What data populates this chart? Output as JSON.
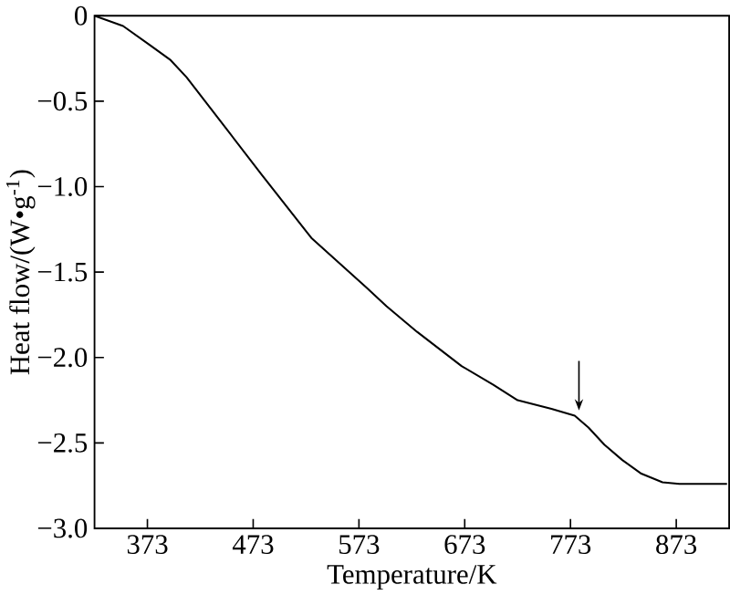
{
  "chart_data": {
    "type": "line",
    "xlabel": "Temperature/K",
    "ylabel": "Heat flow/(W•g$^{-1}$)",
    "xlim": [
      323,
      923
    ],
    "ylim": [
      -3.0,
      0
    ],
    "xticks": [
      373,
      473,
      573,
      673,
      773,
      873
    ],
    "yticks": [
      {
        "value": -3.0,
        "label": "−3.0"
      },
      {
        "value": -2.5,
        "label": "−2.5"
      },
      {
        "value": -2.0,
        "label": "−2.0"
      },
      {
        "value": -1.5,
        "label": "−1.5"
      },
      {
        "value": -1.0,
        "label": "−1.0"
      },
      {
        "value": -0.5,
        "label": "−0.5"
      },
      0
    ],
    "grid": false,
    "marker": "none",
    "line_style": "solid",
    "series": [
      {
        "color": "#000000",
        "x": [
          323,
          350,
          375,
          395,
          410,
          445,
          481,
          528,
          580,
          599,
          628,
          670,
          700,
          723,
          755,
          777,
          790,
          805,
          822,
          840,
          860,
          876,
          900,
          921
        ],
        "values": [
          0,
          -0.06,
          -0.17,
          -0.26,
          -0.36,
          -0.64,
          -0.93,
          -1.3,
          -1.59,
          -1.7,
          -1.85,
          -2.05,
          -2.16,
          -2.25,
          -2.3,
          -2.34,
          -2.41,
          -2.51,
          -2.6,
          -2.68,
          -2.73,
          -2.74,
          -2.74,
          -2.74
        ]
      }
    ]
  }
}
